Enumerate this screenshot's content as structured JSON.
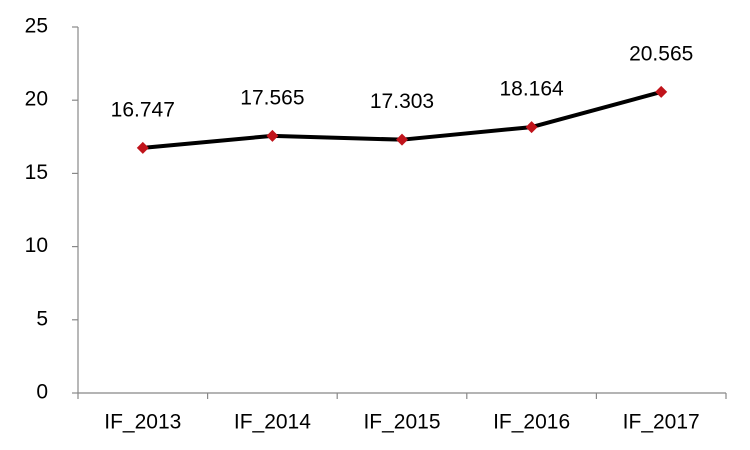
{
  "chart_data": {
    "type": "line",
    "categories": [
      "IF_2013",
      "IF_2014",
      "IF_2015",
      "IF_2016",
      "IF_2017"
    ],
    "values": [
      16.747,
      17.565,
      17.303,
      18.164,
      20.565
    ],
    "color": "#000000",
    "marker_color": "#c0141b",
    "ylim": [
      0,
      25
    ],
    "yticks": [
      0,
      5,
      10,
      15,
      20,
      25
    ],
    "grid": false
  }
}
